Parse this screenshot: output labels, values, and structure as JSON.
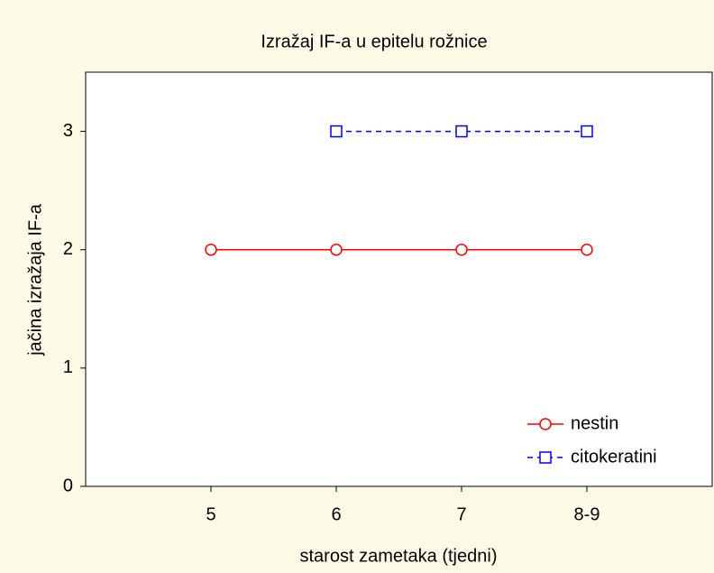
{
  "chart_data": {
    "type": "line",
    "title": "Izražaj IF-a u epitelu rožnice",
    "x_label": "starost zametaka (tjedni)",
    "y_label": "jačina izražaja IF-a",
    "categories": [
      "5",
      "6",
      "7",
      "8-9"
    ],
    "series": [
      {
        "name": "nestin",
        "color": "#ff0000",
        "marker": "circle",
        "line_style": "solid",
        "values": [
          2,
          2,
          2,
          2
        ]
      },
      {
        "name": "citokeratini",
        "color": "#0000ff",
        "marker": "square",
        "line_style": "dashed",
        "values": [
          null,
          3,
          3,
          3
        ]
      }
    ],
    "ylim": [
      0,
      3.5
    ],
    "yticks": [
      0,
      1,
      2,
      3
    ],
    "legend": "lower right",
    "grid": false
  }
}
